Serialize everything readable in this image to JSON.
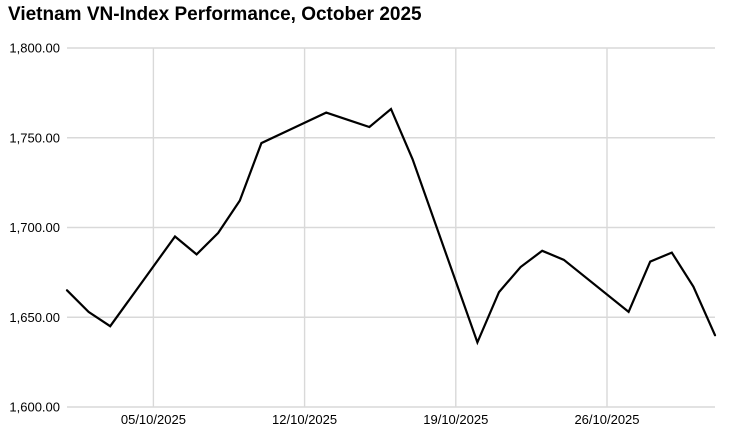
{
  "page": {
    "title": "Vietnam VN-Index Performance, October 2025"
  },
  "chart_data": {
    "type": "line",
    "title": "Vietnam VN-Index Performance, October 2025",
    "xlabel": "",
    "ylabel": "",
    "xlim": [
      1,
      31
    ],
    "ylim": [
      1600,
      1800
    ],
    "grid": true,
    "legend_position": "none",
    "colors": {
      "line": "#000000",
      "grid": "#d9d9d9",
      "text": "#000000",
      "background": "#ffffff"
    },
    "y_ticks": [
      {
        "value": 1800,
        "label": "1,800.00"
      },
      {
        "value": 1750,
        "label": "1,750.00"
      },
      {
        "value": 1700,
        "label": "1,700.00"
      },
      {
        "value": 1650,
        "label": "1,650.00"
      },
      {
        "value": 1600,
        "label": "1,600.00"
      }
    ],
    "x_ticks": [
      {
        "day": 5,
        "label": "05/10/2025"
      },
      {
        "day": 12,
        "label": "12/10/2025"
      },
      {
        "day": 19,
        "label": "19/10/2025"
      },
      {
        "day": 26,
        "label": "26/10/2025"
      }
    ],
    "series": [
      {
        "name": "VN-Index",
        "points": [
          {
            "date": "01/10/2025",
            "day": 1,
            "value": 1665
          },
          {
            "date": "02/10/2025",
            "day": 2,
            "value": 1653
          },
          {
            "date": "03/10/2025",
            "day": 3,
            "value": 1645
          },
          {
            "date": "06/10/2025",
            "day": 6,
            "value": 1695
          },
          {
            "date": "07/10/2025",
            "day": 7,
            "value": 1685
          },
          {
            "date": "08/10/2025",
            "day": 8,
            "value": 1697
          },
          {
            "date": "09/10/2025",
            "day": 9,
            "value": 1715
          },
          {
            "date": "10/10/2025",
            "day": 10,
            "value": 1747
          },
          {
            "date": "13/10/2025",
            "day": 13,
            "value": 1764
          },
          {
            "date": "14/10/2025",
            "day": 14,
            "value": 1760
          },
          {
            "date": "15/10/2025",
            "day": 15,
            "value": 1756
          },
          {
            "date": "16/10/2025",
            "day": 16,
            "value": 1766
          },
          {
            "date": "17/10/2025",
            "day": 17,
            "value": 1738
          },
          {
            "date": "20/10/2025",
            "day": 20,
            "value": 1636
          },
          {
            "date": "21/10/2025",
            "day": 21,
            "value": 1664
          },
          {
            "date": "22/10/2025",
            "day": 22,
            "value": 1678
          },
          {
            "date": "23/10/2025",
            "day": 23,
            "value": 1687
          },
          {
            "date": "24/10/2025",
            "day": 24,
            "value": 1682
          },
          {
            "date": "27/10/2025",
            "day": 27,
            "value": 1653
          },
          {
            "date": "28/10/2025",
            "day": 28,
            "value": 1681
          },
          {
            "date": "29/10/2025",
            "day": 29,
            "value": 1686
          },
          {
            "date": "30/10/2025",
            "day": 30,
            "value": 1667
          },
          {
            "date": "31/10/2025",
            "day": 31,
            "value": 1640
          }
        ]
      }
    ]
  }
}
